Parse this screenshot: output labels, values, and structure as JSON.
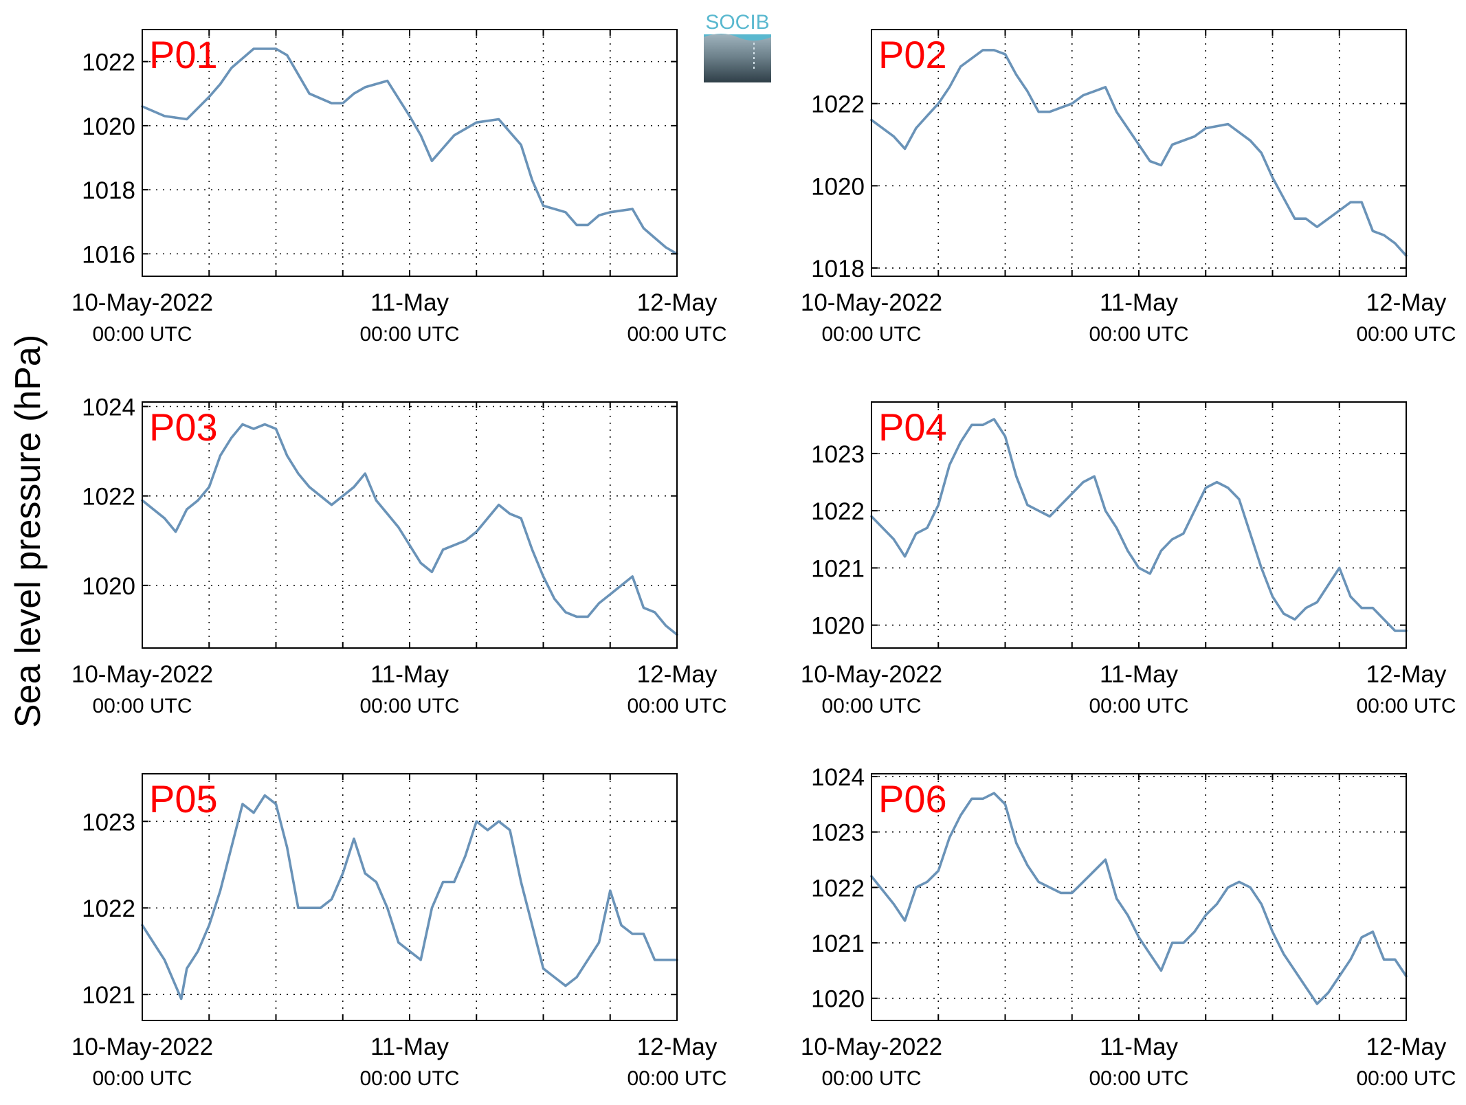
{
  "figure": {
    "ylabel": "Sea level pressure (hPa)",
    "logo": "SOCIB",
    "line_color": "#6a93b8",
    "label_color": "#ff0000"
  },
  "chart_data": [
    {
      "type": "line",
      "label": "P01",
      "x_range": [
        "2022-05-10 00:00",
        "2022-05-12 00:00"
      ],
      "x_ticks": [
        {
          "label": "10-May-2022",
          "sub": "00:00 UTC"
        },
        {
          "label": "11-May",
          "sub": "00:00 UTC"
        },
        {
          "label": "12-May",
          "sub": "00:00 UTC"
        }
      ],
      "grid": true,
      "ylim": [
        1015.3,
        1023.0
      ],
      "yticks": [
        1016,
        1018,
        1020,
        1022
      ],
      "series": [
        {
          "x_hours": [
            0,
            2,
            4,
            6,
            7,
            8,
            10,
            12,
            13,
            14,
            15,
            17,
            18,
            19,
            20,
            22,
            24,
            25,
            26,
            27,
            28,
            30,
            32,
            33,
            34,
            35,
            36,
            38,
            39,
            40,
            41,
            42,
            44,
            45,
            46,
            47,
            48
          ],
          "y": [
            1020.6,
            1020.3,
            1020.2,
            1020.9,
            1021.3,
            1021.8,
            1022.4,
            1022.4,
            1022.2,
            1021.6,
            1021.0,
            1020.7,
            1020.7,
            1021.0,
            1021.2,
            1021.4,
            1020.3,
            1019.7,
            1018.9,
            1019.3,
            1019.7,
            1020.1,
            1020.2,
            1019.8,
            1019.4,
            1018.3,
            1017.5,
            1017.3,
            1016.9,
            1016.9,
            1017.2,
            1017.3,
            1017.4,
            1016.8,
            1016.5,
            1016.2,
            1016.0
          ]
        }
      ]
    },
    {
      "type": "line",
      "label": "P02",
      "x_range": [
        "2022-05-10 00:00",
        "2022-05-12 00:00"
      ],
      "x_ticks": [
        {
          "label": "10-May-2022",
          "sub": "00:00 UTC"
        },
        {
          "label": "11-May",
          "sub": "00:00 UTC"
        },
        {
          "label": "12-May",
          "sub": "00:00 UTC"
        }
      ],
      "grid": true,
      "ylim": [
        1017.8,
        1023.8
      ],
      "yticks": [
        1018,
        1020,
        1022
      ],
      "series": [
        {
          "x_hours": [
            0,
            2,
            3,
            4,
            5,
            6,
            7,
            8,
            10,
            11,
            12,
            13,
            14,
            15,
            16,
            17,
            18,
            19,
            20,
            21,
            22,
            24,
            25,
            26,
            27,
            28,
            29,
            30,
            32,
            33,
            34,
            35,
            36,
            37,
            38,
            39,
            40,
            42,
            43,
            44,
            45,
            46,
            47,
            48
          ],
          "y": [
            1021.6,
            1021.2,
            1020.9,
            1021.4,
            1021.7,
            1022.0,
            1022.4,
            1022.9,
            1023.3,
            1023.3,
            1023.2,
            1022.7,
            1022.3,
            1021.8,
            1021.8,
            1021.9,
            1022.0,
            1022.2,
            1022.3,
            1022.4,
            1021.8,
            1021.0,
            1020.6,
            1020.5,
            1021.0,
            1021.1,
            1021.2,
            1021.4,
            1021.5,
            1021.3,
            1021.1,
            1020.8,
            1020.2,
            1019.7,
            1019.2,
            1019.2,
            1019.0,
            1019.4,
            1019.6,
            1019.6,
            1018.9,
            1018.8,
            1018.6,
            1018.3
          ]
        }
      ]
    },
    {
      "type": "line",
      "label": "P03",
      "x_range": [
        "2022-05-10 00:00",
        "2022-05-12 00:00"
      ],
      "x_ticks": [
        {
          "label": "10-May-2022",
          "sub": "00:00 UTC"
        },
        {
          "label": "11-May",
          "sub": "00:00 UTC"
        },
        {
          "label": "12-May",
          "sub": "00:00 UTC"
        }
      ],
      "grid": true,
      "ylim": [
        1018.6,
        1024.1
      ],
      "yticks": [
        1020,
        1022,
        1024
      ],
      "series": [
        {
          "x_hours": [
            0,
            2,
            3,
            4,
            5,
            6,
            7,
            8,
            9,
            10,
            11,
            12,
            13,
            14,
            15,
            16,
            17,
            18,
            19,
            20,
            21,
            22,
            23,
            24,
            25,
            26,
            27,
            28,
            29,
            30,
            32,
            33,
            34,
            35,
            36,
            37,
            38,
            39,
            40,
            41,
            42,
            43,
            44,
            45,
            46,
            47,
            48
          ],
          "y": [
            1021.9,
            1021.5,
            1021.2,
            1021.7,
            1021.9,
            1022.2,
            1022.9,
            1023.3,
            1023.6,
            1023.5,
            1023.6,
            1023.5,
            1022.9,
            1022.5,
            1022.2,
            1022.0,
            1021.8,
            1022.0,
            1022.2,
            1022.5,
            1021.9,
            1021.6,
            1021.3,
            1020.9,
            1020.5,
            1020.3,
            1020.8,
            1020.9,
            1021.0,
            1021.2,
            1021.8,
            1021.6,
            1021.5,
            1020.8,
            1020.2,
            1019.7,
            1019.4,
            1019.3,
            1019.3,
            1019.6,
            1019.8,
            1020.0,
            1020.2,
            1019.5,
            1019.4,
            1019.1,
            1018.9
          ]
        }
      ]
    },
    {
      "type": "line",
      "label": "P04",
      "x_range": [
        "2022-05-10 00:00",
        "2022-05-12 00:00"
      ],
      "x_ticks": [
        {
          "label": "10-May-2022",
          "sub": "00:00 UTC"
        },
        {
          "label": "11-May",
          "sub": "00:00 UTC"
        },
        {
          "label": "12-May",
          "sub": "00:00 UTC"
        }
      ],
      "grid": true,
      "ylim": [
        1019.6,
        1023.9
      ],
      "yticks": [
        1020,
        1021,
        1022,
        1023
      ],
      "series": [
        {
          "x_hours": [
            0,
            2,
            3,
            4,
            5,
            6,
            7,
            8,
            9,
            10,
            11,
            12,
            13,
            14,
            15,
            16,
            17,
            18,
            19,
            20,
            21,
            22,
            23,
            24,
            25,
            26,
            27,
            28,
            29,
            30,
            31,
            32,
            33,
            34,
            35,
            36,
            37,
            38,
            39,
            40,
            41,
            42,
            43,
            44,
            45,
            46,
            47,
            48
          ],
          "y": [
            1021.9,
            1021.5,
            1021.2,
            1021.6,
            1021.7,
            1022.1,
            1022.8,
            1023.2,
            1023.5,
            1023.5,
            1023.6,
            1023.3,
            1022.6,
            1022.1,
            1022.0,
            1021.9,
            1022.1,
            1022.3,
            1022.5,
            1022.6,
            1022.0,
            1021.7,
            1021.3,
            1021.0,
            1020.9,
            1021.3,
            1021.5,
            1021.6,
            1022.0,
            1022.4,
            1022.5,
            1022.4,
            1022.2,
            1021.6,
            1021.0,
            1020.5,
            1020.2,
            1020.1,
            1020.3,
            1020.4,
            1020.7,
            1021.0,
            1020.5,
            1020.3,
            1020.3,
            1020.1,
            1019.9,
            1019.9
          ]
        }
      ]
    },
    {
      "type": "line",
      "label": "P05",
      "x_range": [
        "2022-05-10 00:00",
        "2022-05-12 00:00"
      ],
      "x_ticks": [
        {
          "label": "10-May-2022",
          "sub": "00:00 UTC"
        },
        {
          "label": "11-May",
          "sub": "00:00 UTC"
        },
        {
          "label": "12-May",
          "sub": "00:00 UTC"
        }
      ],
      "grid": true,
      "ylim": [
        1020.7,
        1023.55
      ],
      "yticks": [
        1021,
        1022,
        1023
      ],
      "series": [
        {
          "x_hours": [
            0,
            1,
            2,
            3,
            3.5,
            4,
            5,
            6,
            7,
            8,
            9,
            10,
            11,
            12,
            13,
            14,
            15,
            16,
            17,
            18,
            19,
            20,
            21,
            22,
            23,
            24,
            25,
            26,
            27,
            28,
            29,
            30,
            31,
            32,
            33,
            34,
            35,
            36,
            37,
            38,
            39,
            40,
            41,
            42,
            43,
            44,
            45,
            46,
            47,
            48
          ],
          "y": [
            1021.8,
            1021.6,
            1021.4,
            1021.1,
            1020.95,
            1021.3,
            1021.5,
            1021.8,
            1022.2,
            1022.7,
            1023.2,
            1023.1,
            1023.3,
            1023.2,
            1022.7,
            1022.0,
            1022.0,
            1022.0,
            1022.1,
            1022.4,
            1022.8,
            1022.4,
            1022.3,
            1022.0,
            1021.6,
            1021.5,
            1021.4,
            1022.0,
            1022.3,
            1022.3,
            1022.6,
            1023.0,
            1022.9,
            1023.0,
            1022.9,
            1022.3,
            1021.8,
            1021.3,
            1021.2,
            1021.1,
            1021.2,
            1021.4,
            1021.6,
            1022.2,
            1021.8,
            1021.7,
            1021.7,
            1021.4,
            1021.4,
            1021.4
          ]
        }
      ]
    },
    {
      "type": "line",
      "label": "P06",
      "x_range": [
        "2022-05-10 00:00",
        "2022-05-12 00:00"
      ],
      "x_ticks": [
        {
          "label": "10-May-2022",
          "sub": "00:00 UTC"
        },
        {
          "label": "11-May",
          "sub": "00:00 UTC"
        },
        {
          "label": "12-May",
          "sub": "00:00 UTC"
        }
      ],
      "grid": true,
      "ylim": [
        1019.6,
        1024.05
      ],
      "yticks": [
        1020,
        1021,
        1022,
        1023,
        1024
      ],
      "series": [
        {
          "x_hours": [
            0,
            2,
            3,
            4,
            5,
            6,
            7,
            8,
            9,
            10,
            11,
            12,
            13,
            14,
            15,
            16,
            17,
            18,
            19,
            20,
            21,
            22,
            23,
            24,
            25,
            26,
            27,
            28,
            29,
            30,
            31,
            32,
            33,
            34,
            35,
            36,
            37,
            38,
            39,
            40,
            41,
            42,
            43,
            44,
            45,
            46,
            47,
            48
          ],
          "y": [
            1022.2,
            1021.7,
            1021.4,
            1022.0,
            1022.1,
            1022.3,
            1022.9,
            1023.3,
            1023.6,
            1023.6,
            1023.7,
            1023.5,
            1022.8,
            1022.4,
            1022.1,
            1022.0,
            1021.9,
            1021.9,
            1022.1,
            1022.3,
            1022.5,
            1021.8,
            1021.5,
            1021.1,
            1020.8,
            1020.5,
            1021.0,
            1021.0,
            1021.2,
            1021.5,
            1021.7,
            1022.0,
            1022.1,
            1022.0,
            1021.7,
            1021.2,
            1020.8,
            1020.5,
            1020.2,
            1019.9,
            1020.1,
            1020.4,
            1020.7,
            1021.1,
            1021.2,
            1020.7,
            1020.7,
            1020.4
          ]
        }
      ]
    }
  ]
}
